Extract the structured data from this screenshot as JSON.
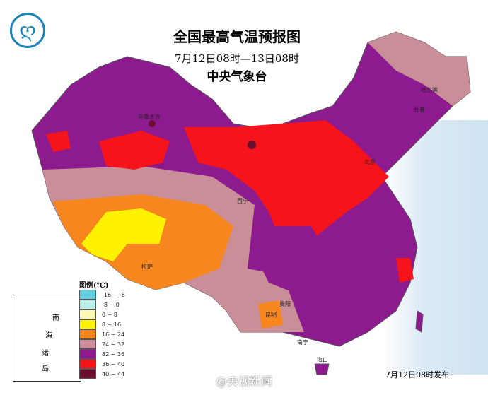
{
  "header": {
    "title": "全国最高气温预报图",
    "period": "7月12日08时—13日08时",
    "issuer": "中央气象台",
    "logo_icon": "cma-logo-icon"
  },
  "legend": {
    "title": "图例(℃)",
    "items": [
      {
        "label": "-16 ~ -8",
        "color": "#5fcfe0"
      },
      {
        "label": "-8 ~ 0",
        "color": "#b9eee6"
      },
      {
        "label": "0 ~ 8",
        "color": "#fbf7b4"
      },
      {
        "label": "8 ~ 16",
        "color": "#fff200"
      },
      {
        "label": "16 ~ 24",
        "color": "#f7861f"
      },
      {
        "label": "24 ~ 32",
        "color": "#c98e98"
      },
      {
        "label": "32 ~ 36",
        "color": "#8e1a8f"
      },
      {
        "label": "36 ~ 40",
        "color": "#f5141b"
      },
      {
        "label": "40 ~ 44",
        "color": "#6a0d2e"
      }
    ]
  },
  "inset": {
    "labels": [
      "南",
      "海",
      "诸",
      "岛"
    ]
  },
  "cities": [
    "乌鲁木齐",
    "拉萨",
    "西宁",
    "北京",
    "哈尔滨",
    "长春",
    "昆明",
    "贵阳",
    "南宁",
    "海口"
  ],
  "footer": {
    "issued": "7月12日08时发布",
    "watermark": "@央视新闻"
  }
}
